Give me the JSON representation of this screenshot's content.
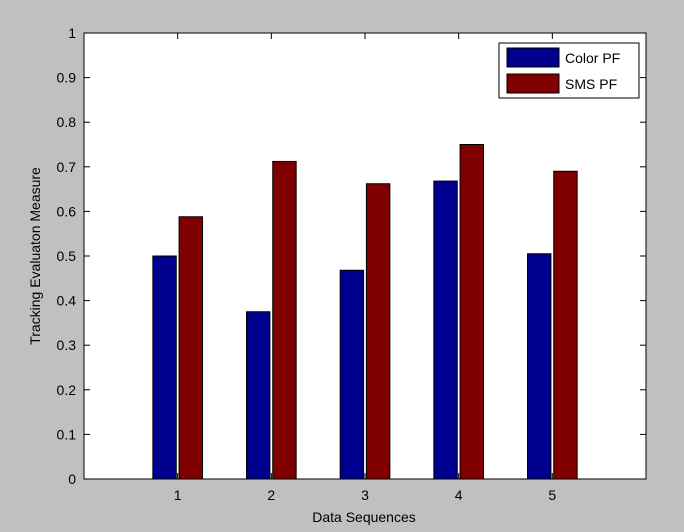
{
  "chart_data": {
    "type": "bar",
    "title": "",
    "xlabel": "Data Sequences",
    "ylabel": "Tracking Evaluaton Measure",
    "categories": [
      "1",
      "2",
      "3",
      "4",
      "5"
    ],
    "series": [
      {
        "name": "Color PF",
        "values": [
          0.5,
          0.375,
          0.468,
          0.668,
          0.505
        ],
        "color": "#00008f"
      },
      {
        "name": "SMS PF",
        "values": [
          0.588,
          0.712,
          0.662,
          0.75,
          0.69
        ],
        "color": "#800000"
      }
    ],
    "ylim": [
      0,
      1
    ],
    "yticks": [
      "0",
      "0.1",
      "0.2",
      "0.3",
      "0.4",
      "0.5",
      "0.6",
      "0.7",
      "0.8",
      "0.9",
      "1"
    ],
    "grid": false,
    "legend": "top-right",
    "background": "#c0c0c0",
    "plot_background": "#ffffff"
  }
}
